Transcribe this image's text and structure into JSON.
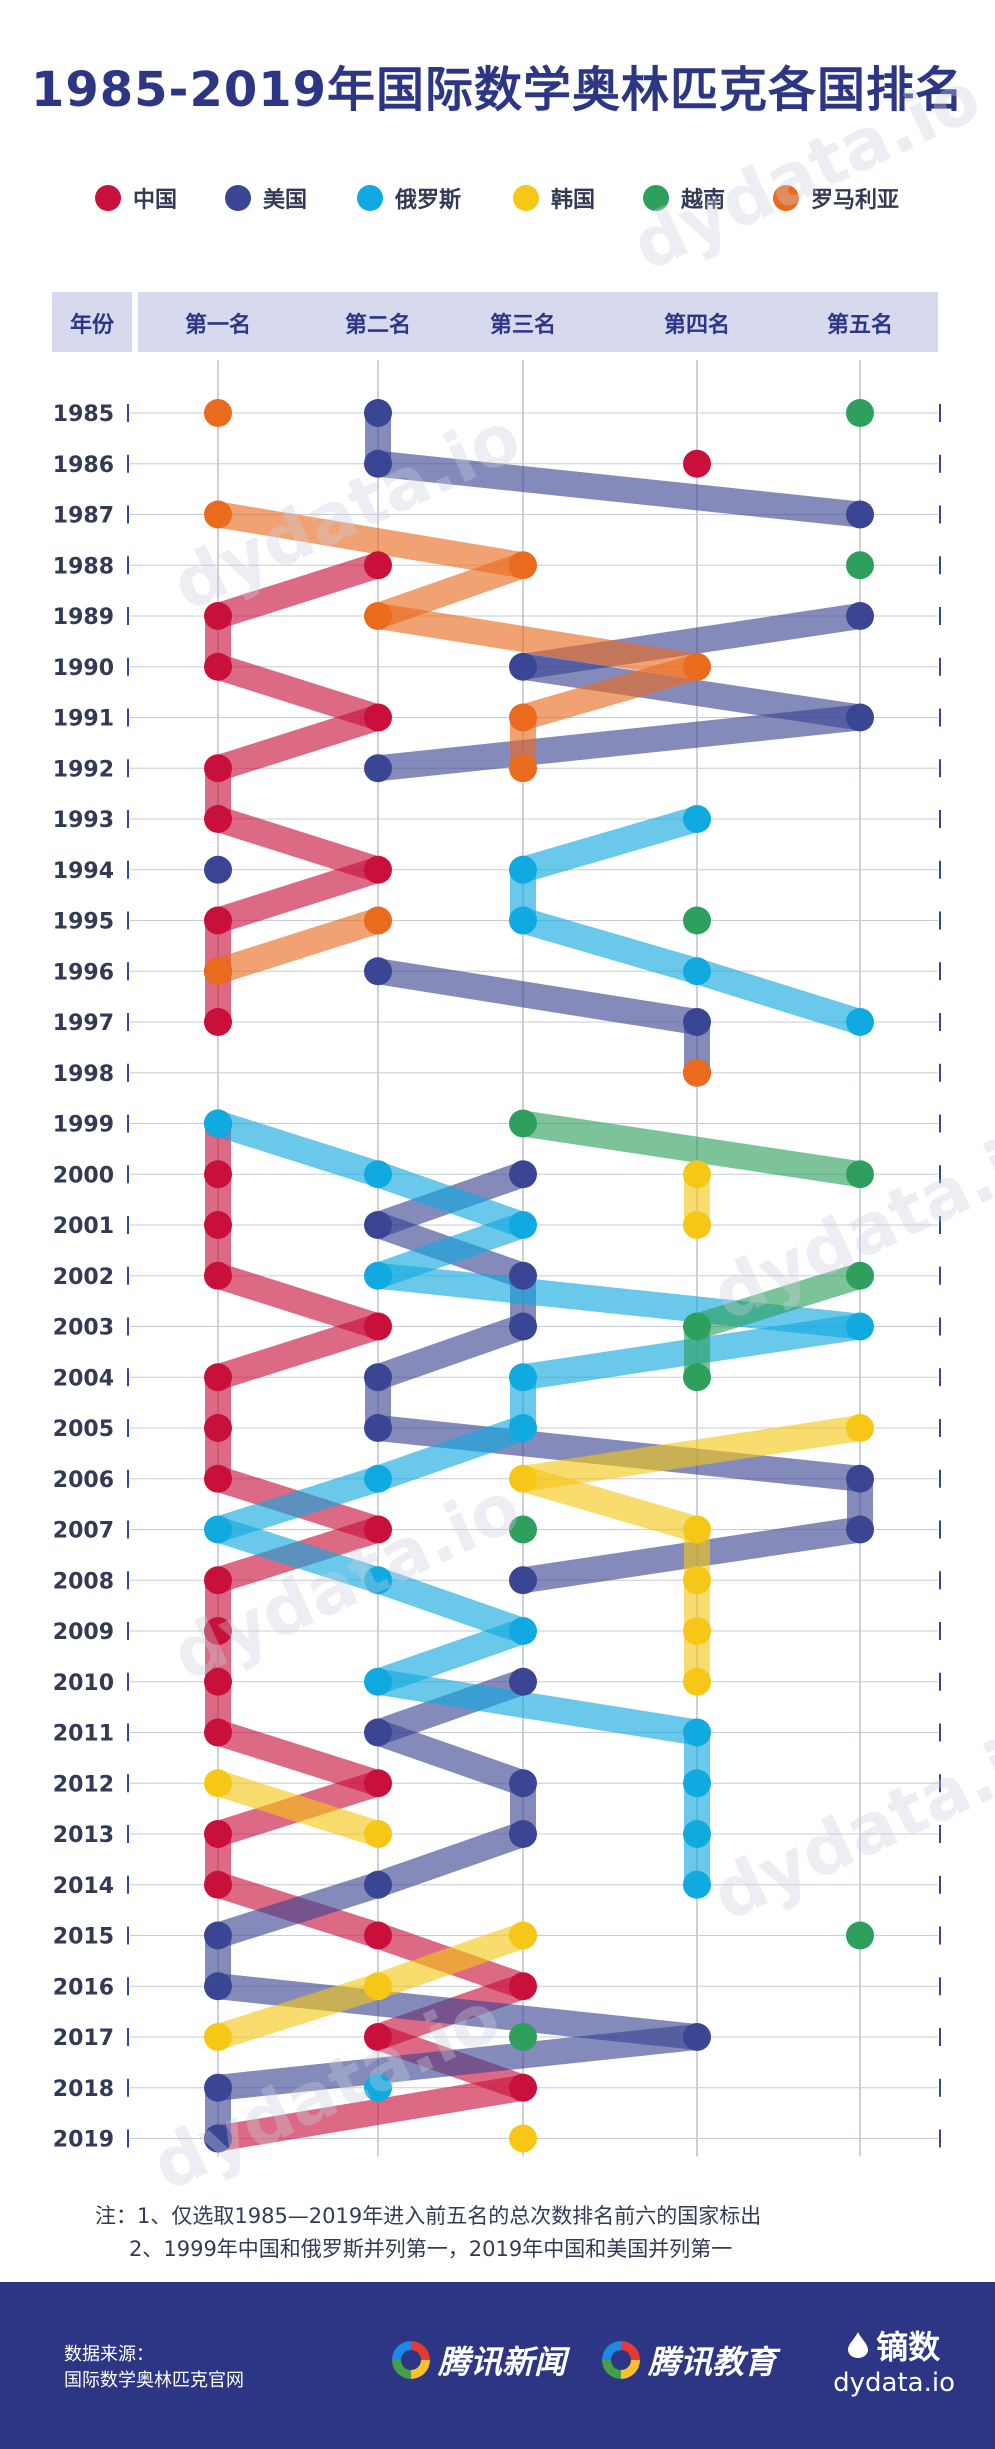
{
  "title": "1985-2019年国际数学奥林匹克各国排名",
  "legend": [
    {
      "name": "中国",
      "color": "#c8103a"
    },
    {
      "name": "美国",
      "color": "#3a4593"
    },
    {
      "name": "俄罗斯",
      "color": "#10a9e0"
    },
    {
      "name": "韩国",
      "color": "#f6c716"
    },
    {
      "name": "越南",
      "color": "#2e9f5d"
    },
    {
      "name": "罗马利亚",
      "color": "#ea6a1e"
    }
  ],
  "chart_data": {
    "type": "bump",
    "title": "1985-2019年国际数学奥林匹克各国排名",
    "header_label": "年份",
    "rank_labels": [
      "第一名",
      "第二名",
      "第三名",
      "第四名",
      "第五名"
    ],
    "years": [
      1985,
      1986,
      1987,
      1988,
      1989,
      1990,
      1991,
      1992,
      1993,
      1994,
      1995,
      1996,
      1997,
      1998,
      1999,
      2000,
      2001,
      2002,
      2003,
      2004,
      2005,
      2006,
      2007,
      2008,
      2009,
      2010,
      2011,
      2012,
      2013,
      2014,
      2015,
      2016,
      2017,
      2018,
      2019
    ],
    "series": [
      {
        "name": "中国",
        "ranks": [
          null,
          4,
          null,
          2,
          1,
          1,
          2,
          1,
          1,
          2,
          1,
          1,
          1,
          null,
          1,
          1,
          1,
          1,
          2,
          1,
          1,
          1,
          2,
          1,
          1,
          1,
          1,
          2,
          1,
          1,
          2,
          3,
          2,
          3,
          1
        ]
      },
      {
        "name": "美国",
        "ranks": [
          2,
          2,
          5,
          null,
          5,
          3,
          5,
          2,
          null,
          1,
          null,
          2,
          4,
          4,
          null,
          3,
          2,
          3,
          3,
          2,
          2,
          5,
          5,
          3,
          null,
          3,
          2,
          3,
          3,
          2,
          1,
          1,
          4,
          1,
          1
        ]
      },
      {
        "name": "俄罗斯",
        "ranks": [
          null,
          null,
          null,
          null,
          null,
          null,
          null,
          null,
          4,
          3,
          3,
          4,
          5,
          null,
          1,
          2,
          3,
          2,
          5,
          3,
          3,
          2,
          1,
          2,
          3,
          2,
          4,
          4,
          4,
          4,
          null,
          null,
          null,
          2,
          null
        ]
      },
      {
        "name": "韩国",
        "ranks": [
          null,
          null,
          null,
          null,
          null,
          null,
          null,
          null,
          null,
          null,
          null,
          null,
          null,
          null,
          null,
          4,
          4,
          null,
          null,
          null,
          5,
          3,
          4,
          4,
          4,
          4,
          null,
          1,
          2,
          null,
          3,
          2,
          1,
          null,
          3
        ]
      },
      {
        "name": "越南",
        "ranks": [
          5,
          null,
          null,
          5,
          null,
          null,
          null,
          null,
          null,
          null,
          4,
          null,
          null,
          null,
          3,
          5,
          null,
          5,
          4,
          4,
          null,
          null,
          3,
          null,
          null,
          null,
          null,
          null,
          null,
          null,
          5,
          null,
          3,
          null,
          null
        ]
      },
      {
        "name": "罗马利亚",
        "ranks": [
          1,
          null,
          1,
          3,
          2,
          4,
          3,
          3,
          null,
          null,
          2,
          1,
          null,
          4,
          null,
          null,
          null,
          null,
          null,
          null,
          null,
          null,
          null,
          null,
          null,
          null,
          null,
          null,
          null,
          null,
          null,
          null,
          null,
          null,
          null
        ]
      }
    ],
    "notes": [
      "注：1、仅选取1985—2019年进入前五名的总次数排名前六的国家标出",
      "2、1999年中国和俄罗斯并列第一，2019年中国和美国并列第一"
    ]
  },
  "footer": {
    "source_label": "数据来源：",
    "source_name": "国际数学奥林匹克官网",
    "brand1": "腾讯新闻",
    "brand2": "腾讯教育",
    "brand3_cn": "镝数",
    "brand3_en": "dydata.io",
    "bg_color": "#2c3684"
  },
  "watermark": "dydata.io"
}
